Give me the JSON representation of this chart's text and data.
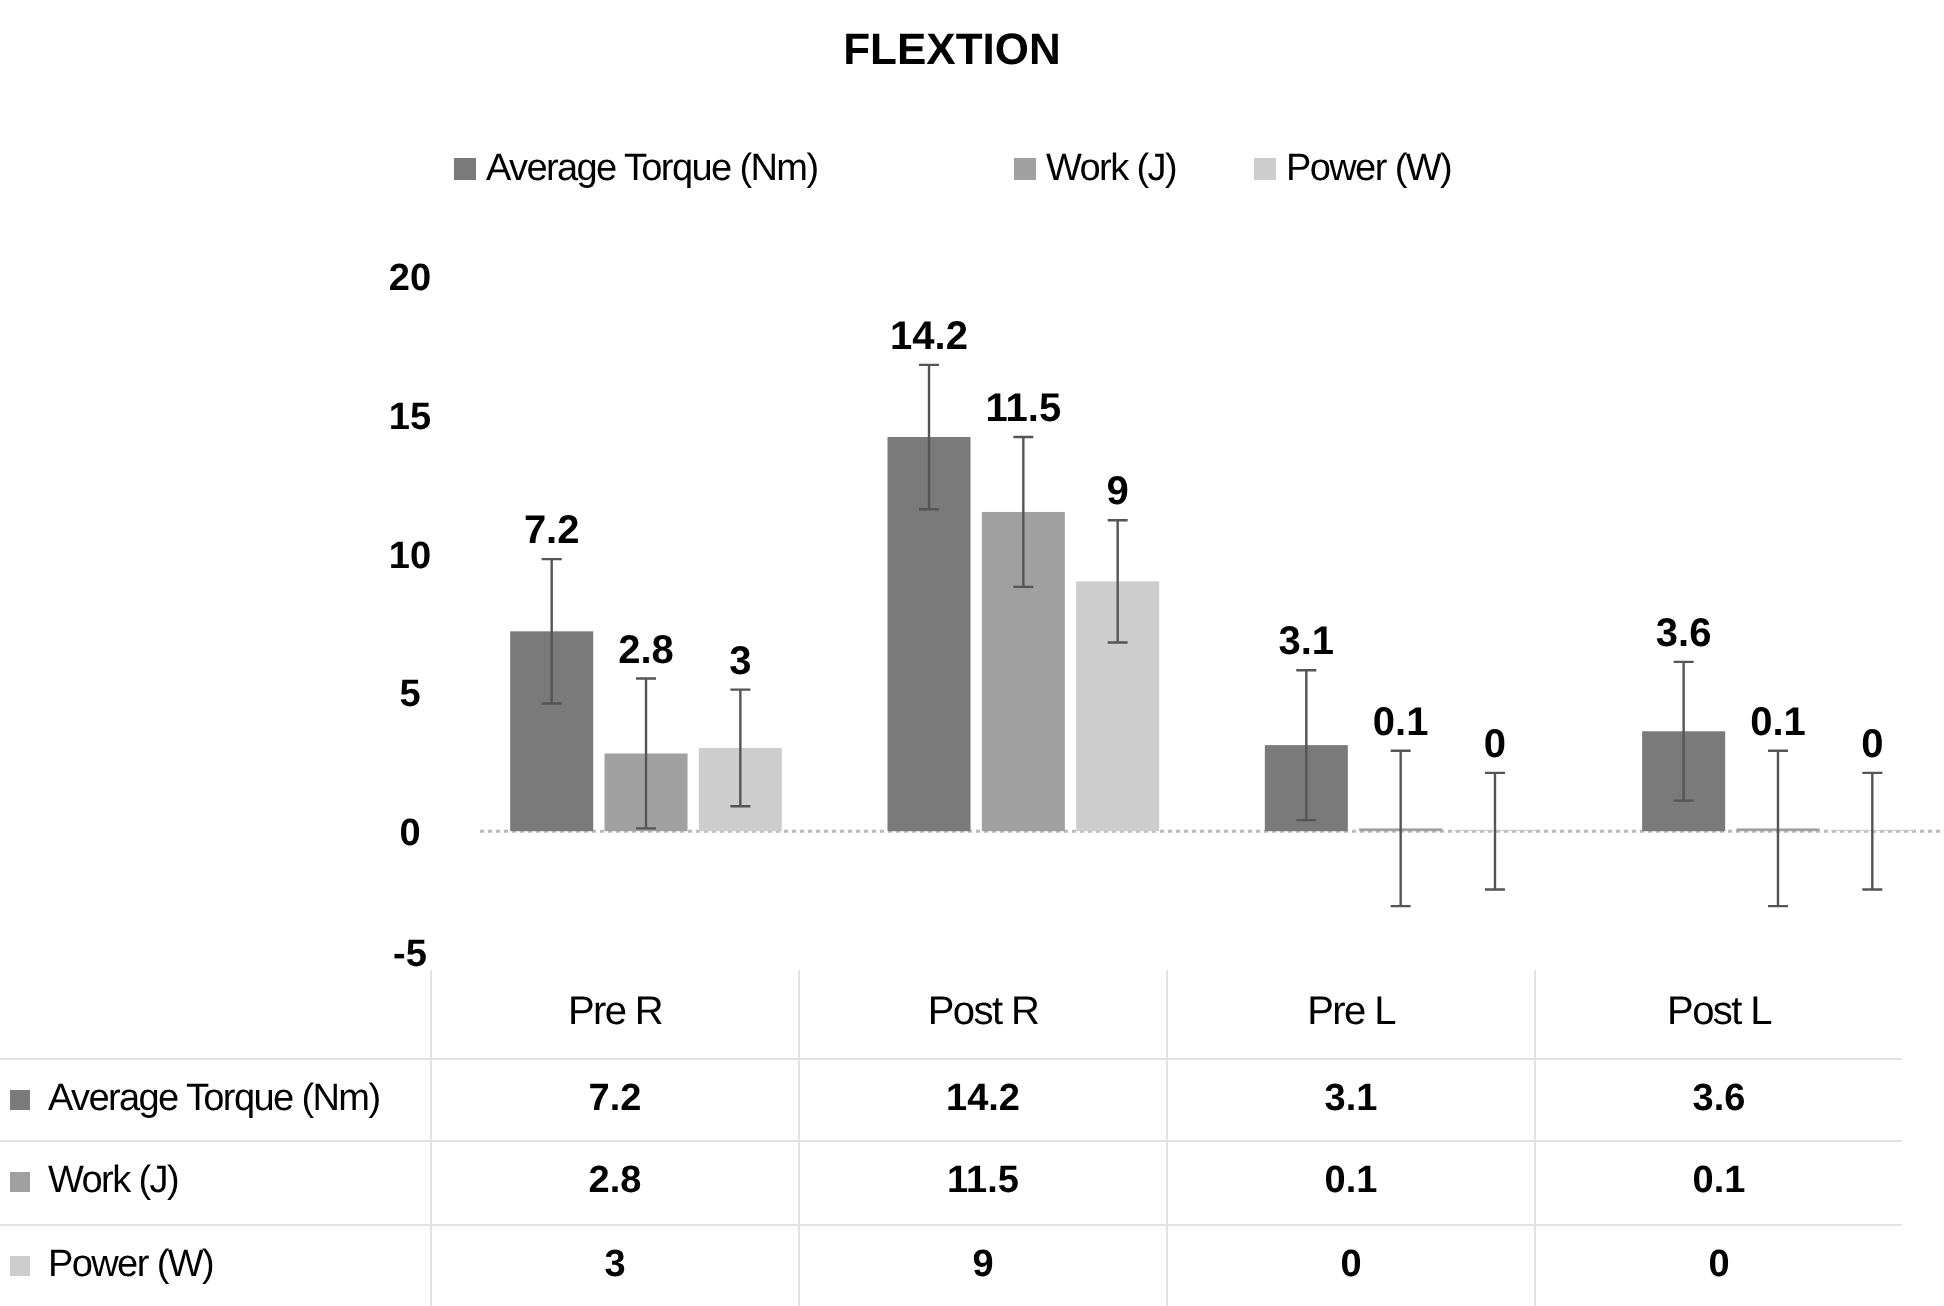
{
  "chart_data": {
    "type": "bar",
    "title": "FLEXTION",
    "categories": [
      "Pre R",
      "Post R",
      "Pre L",
      "Post L"
    ],
    "series": [
      {
        "name": "Average Torque (Nm)",
        "color": "#7a7a7a",
        "values": [
          7.2,
          14.2,
          3.1,
          3.6
        ],
        "errors": [
          2.6,
          2.6,
          2.7,
          2.5
        ]
      },
      {
        "name": "Work (J)",
        "color": "#a0a0a0",
        "values": [
          2.8,
          11.5,
          0.1,
          0.1
        ],
        "errors": [
          2.7,
          2.7,
          2.8,
          2.8
        ]
      },
      {
        "name": "Power (W)",
        "color": "#cdcdcd",
        "values": [
          3,
          9,
          0,
          0
        ],
        "errors": [
          2.1,
          2.2,
          2.1,
          2.1
        ]
      }
    ],
    "annotations": [
      "7.2",
      "2.8",
      "3",
      "14.2",
      "11.5",
      "9",
      "3.1",
      "0.1",
      "0",
      "3.6",
      "0.1",
      "0"
    ],
    "ylim": [
      -5,
      20
    ],
    "yticks": [
      -5,
      0,
      5,
      10,
      15,
      20
    ],
    "legend": "top",
    "data_labels": true
  }
}
